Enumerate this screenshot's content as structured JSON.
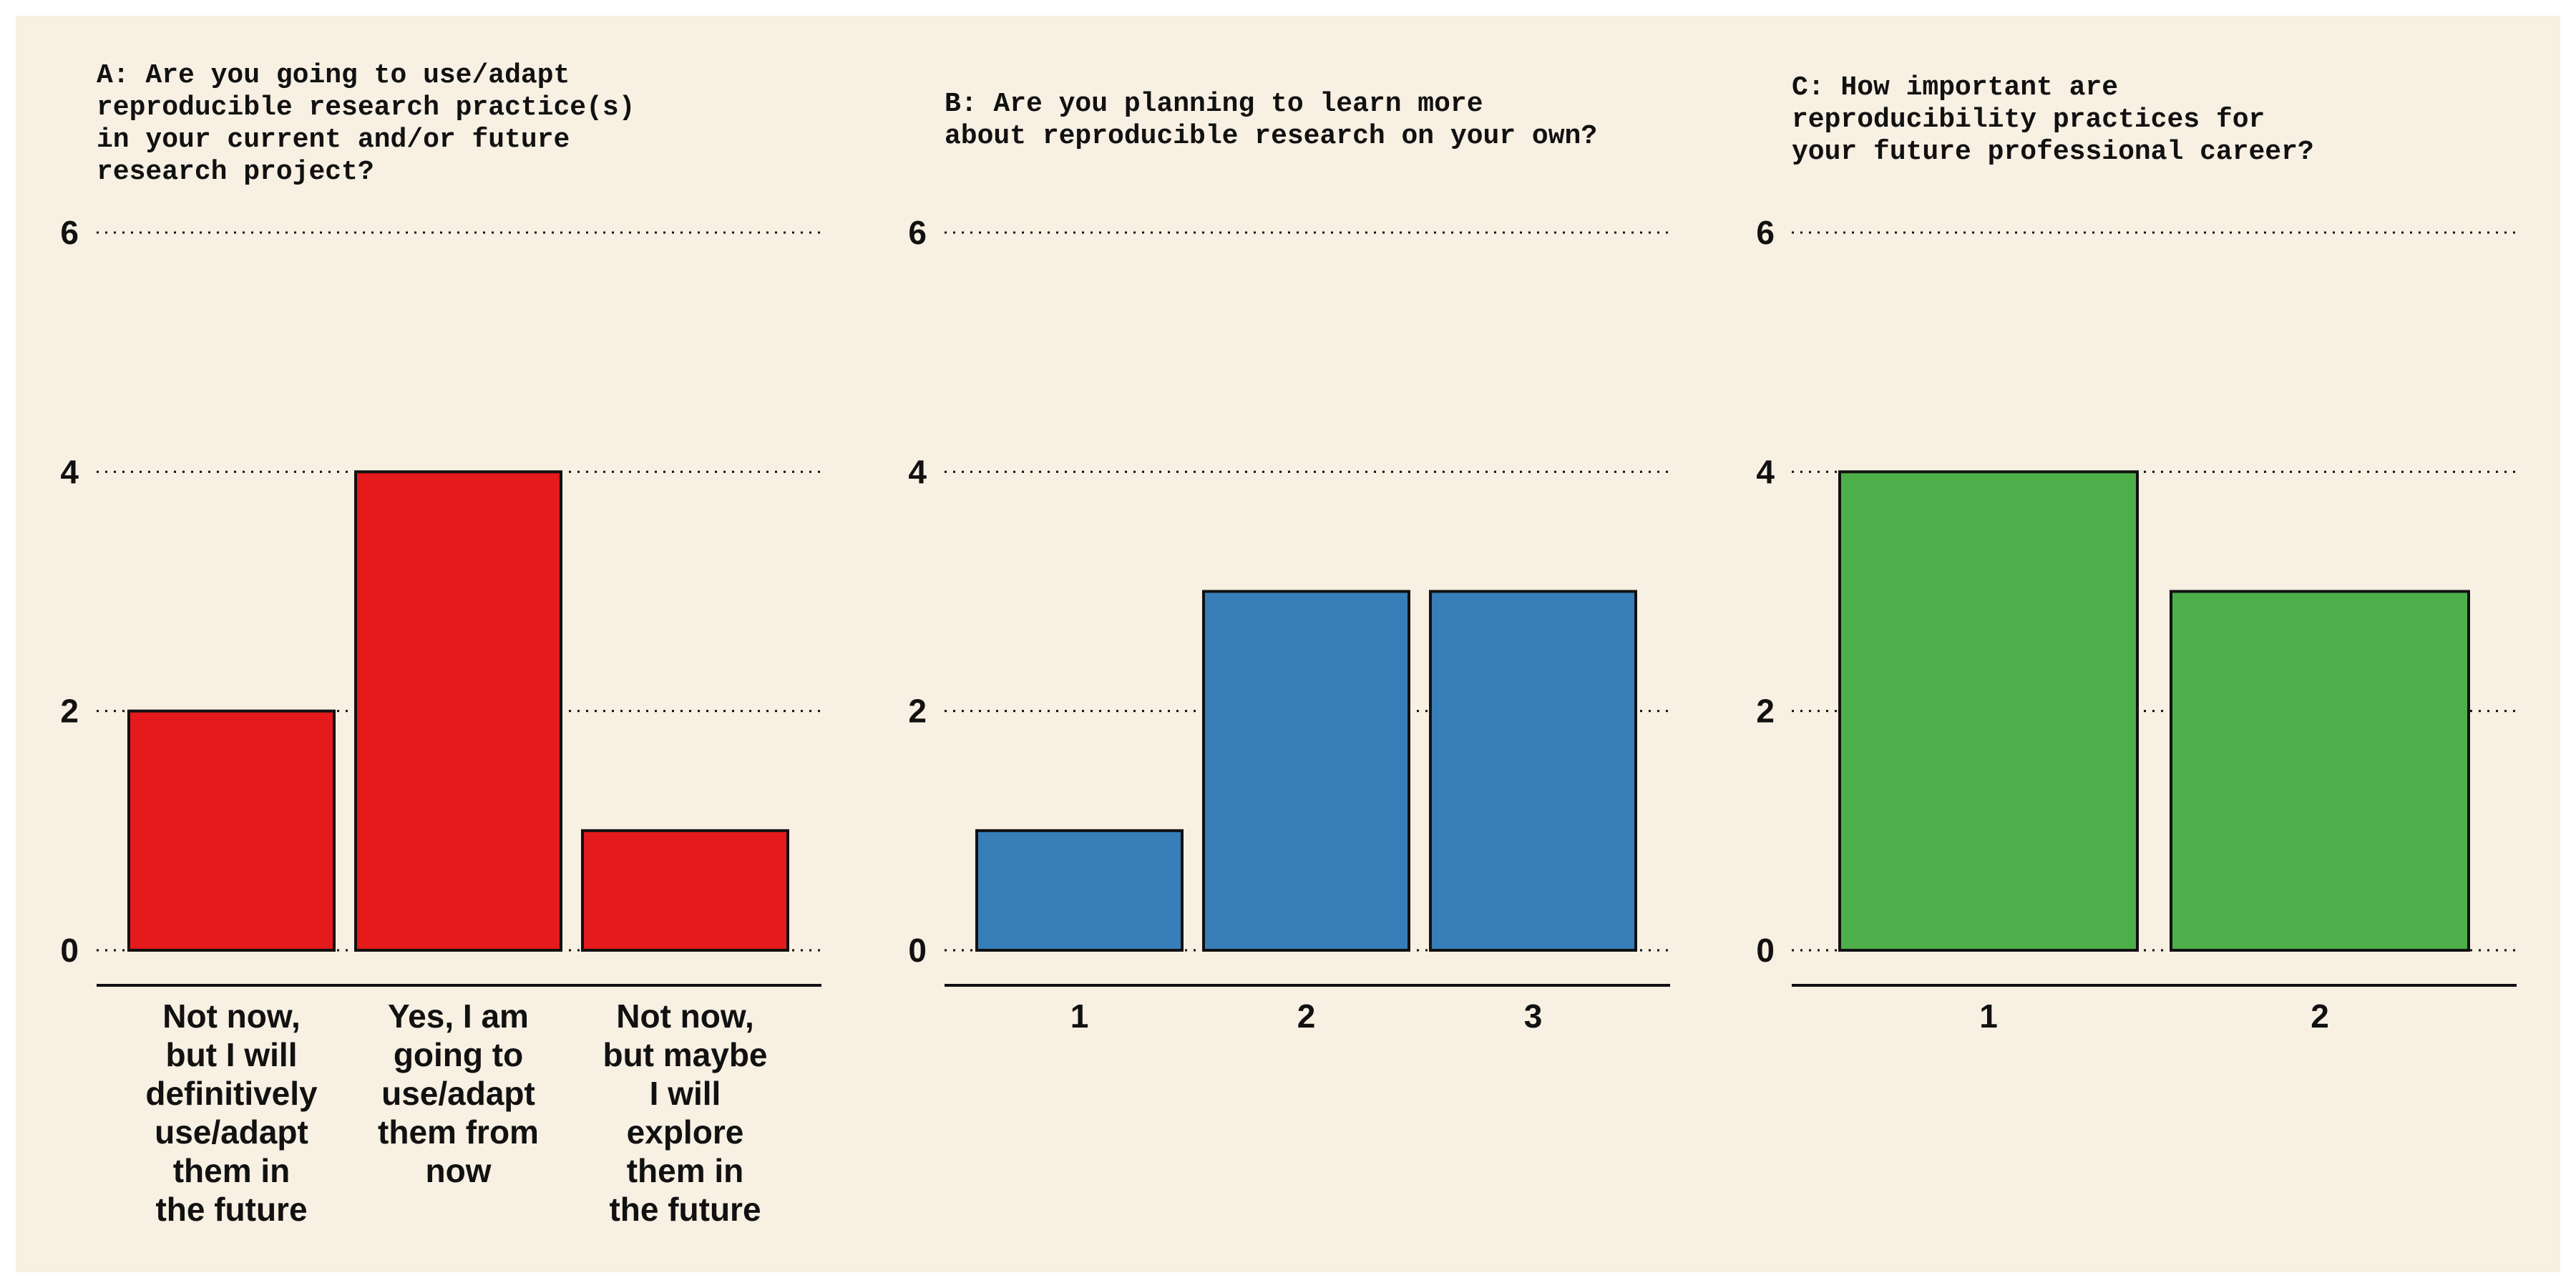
{
  "chart_data": [
    {
      "type": "bar",
      "title_lines": [
        "A: Are you going to use/adapt",
        "reproducible research practice(s)",
        "in your current and/or future",
        "research project?"
      ],
      "categories": [
        [
          "Not now,",
          "but I will",
          "definitively",
          "use/adapt",
          "them in",
          "the future"
        ],
        [
          "Yes, I am",
          "going to",
          "use/adapt",
          "them from",
          "now"
        ],
        [
          "Not now,",
          "but maybe",
          "I will",
          "explore",
          "them in",
          "the future"
        ]
      ],
      "values": [
        2,
        4,
        1
      ],
      "ylim": [
        0,
        6
      ],
      "yticks": [
        "0",
        "2",
        "4",
        "6"
      ],
      "color": "#e41a1c",
      "grid": "horizontal dotted"
    },
    {
      "type": "bar",
      "title_lines": [
        "B: Are you planning to learn more",
        "about reproducible research on your own?"
      ],
      "categories": [
        [
          "1"
        ],
        [
          "2"
        ],
        [
          "3"
        ]
      ],
      "values": [
        1,
        3,
        3
      ],
      "ylim": [
        0,
        6
      ],
      "yticks": [
        "0",
        "2",
        "4",
        "6"
      ],
      "color": "#377eb8",
      "grid": "horizontal dotted"
    },
    {
      "type": "bar",
      "title_lines": [
        "C: How important are",
        "reproducibility practices for",
        "your future professional career?"
      ],
      "categories": [
        [
          "1"
        ],
        [
          "2"
        ]
      ],
      "values": [
        4,
        3
      ],
      "ylim": [
        0,
        6
      ],
      "yticks": [
        "0",
        "2",
        "4",
        "6"
      ],
      "color": "#4daf4a",
      "grid": "horizontal dotted"
    }
  ]
}
